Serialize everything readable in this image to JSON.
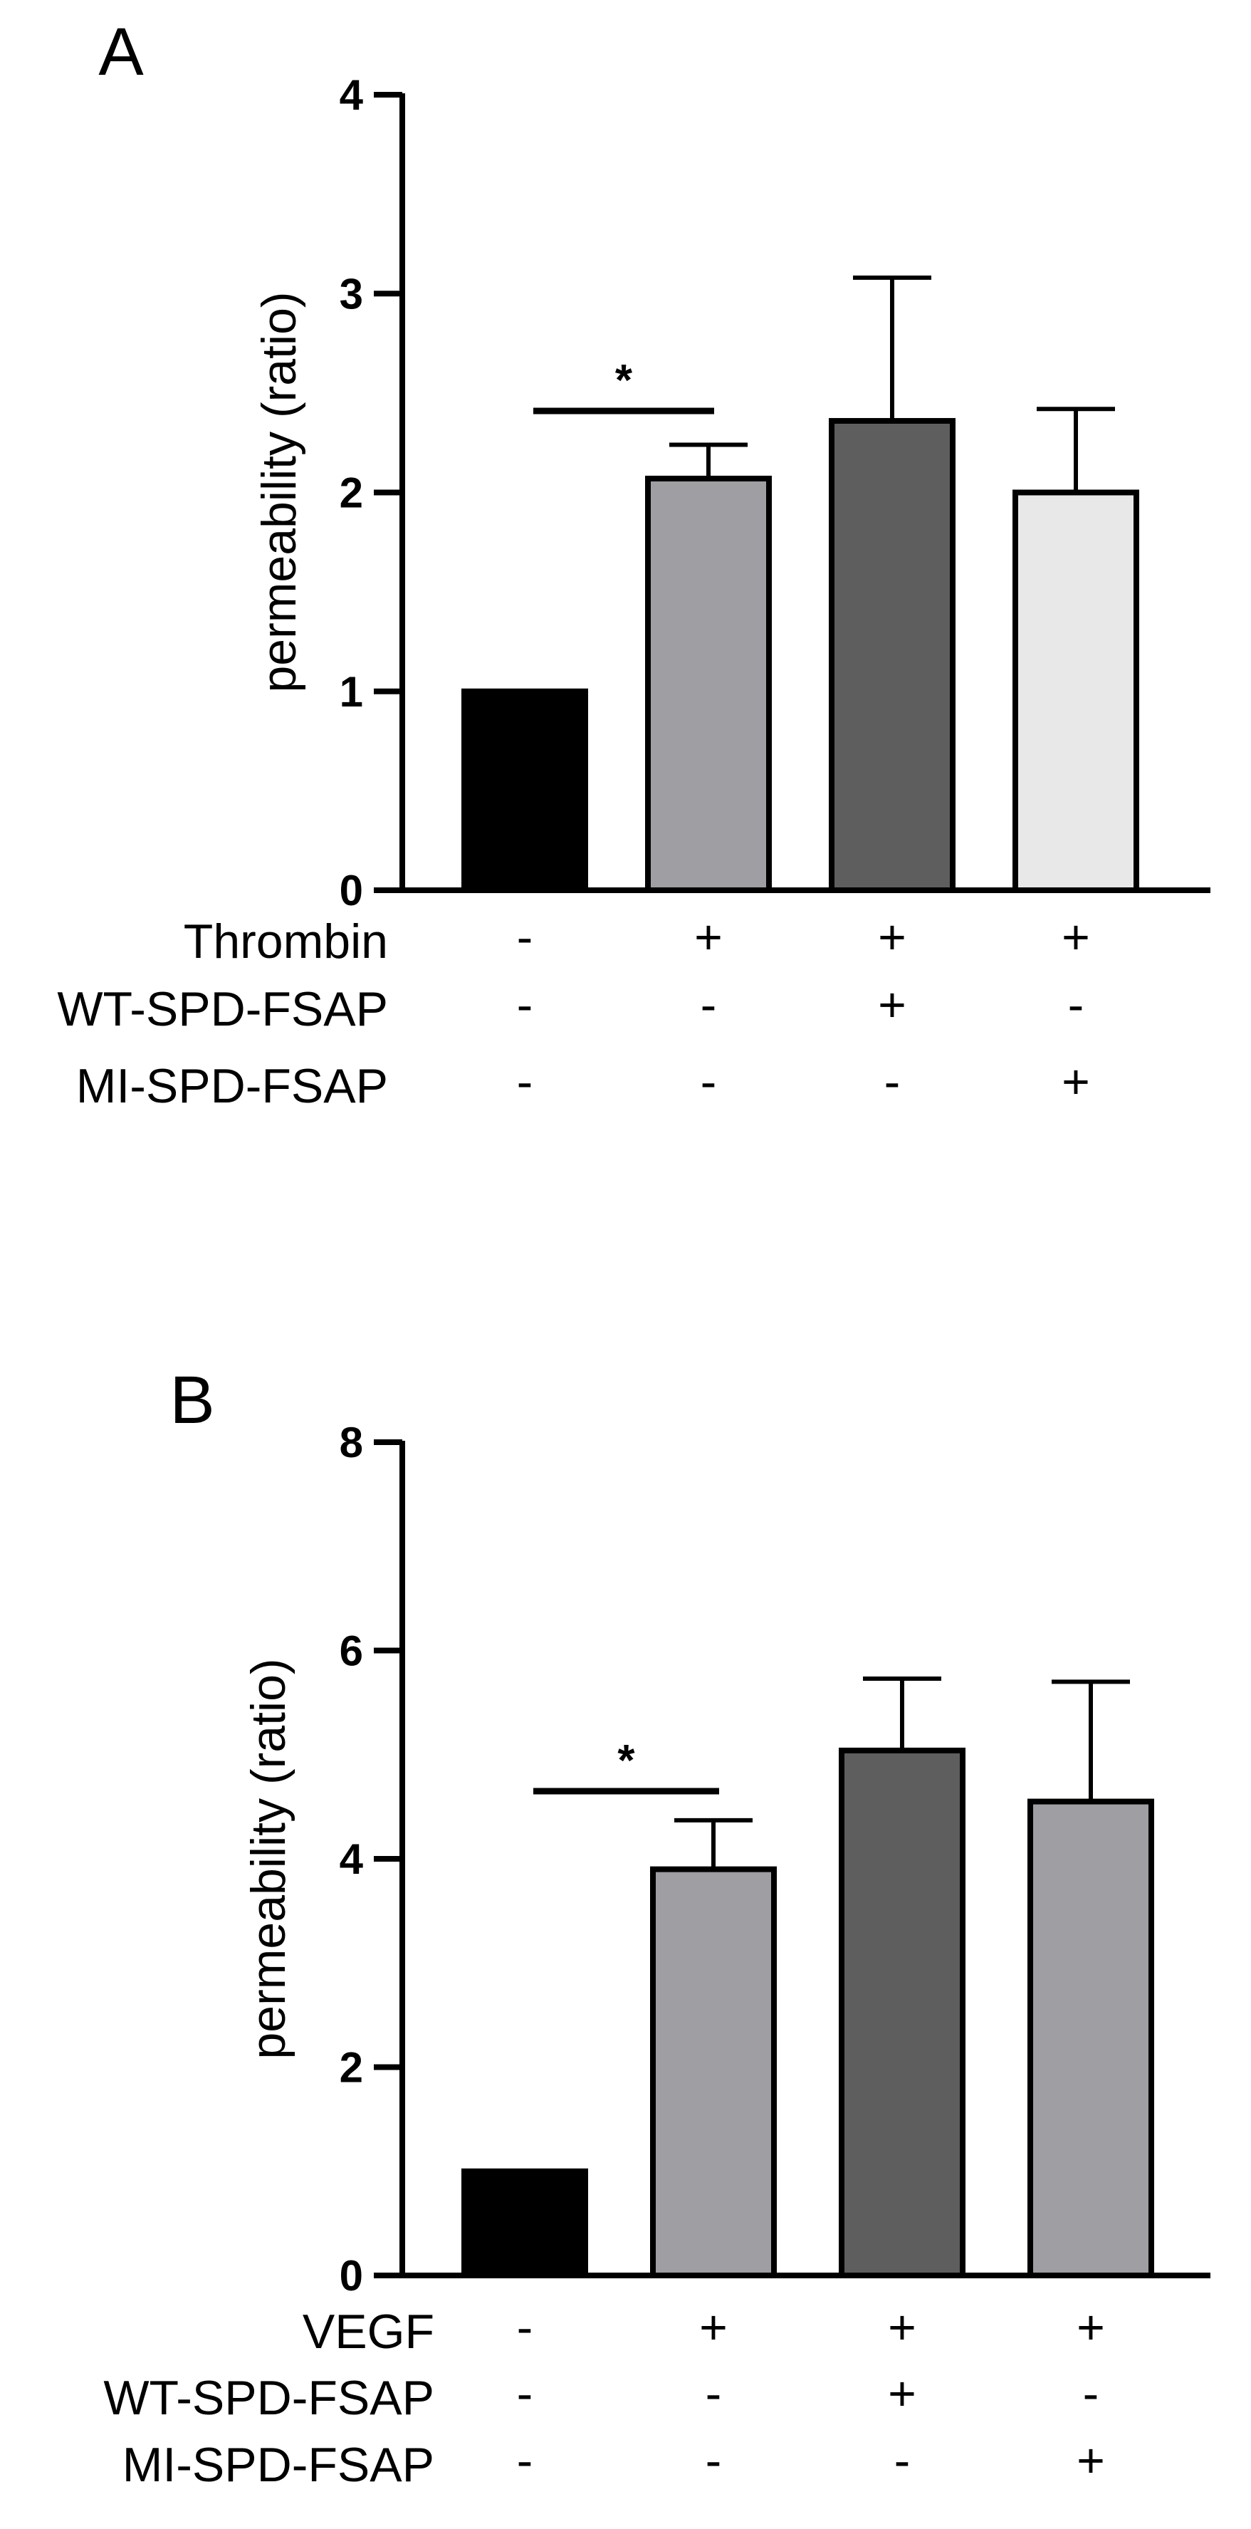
{
  "chart_data": [
    {
      "panel": "A",
      "type": "bar",
      "ylabel": "permeability (ratio)",
      "ylim": [
        0,
        4
      ],
      "yticks": [
        0,
        1,
        2,
        3,
        4
      ],
      "bars": [
        {
          "value": 1.0,
          "error": 0.0,
          "color": "#000000"
        },
        {
          "value": 2.07,
          "error": 0.17,
          "color": "#9e9ea3"
        },
        {
          "value": 2.36,
          "error": 0.72,
          "color": "#5e5e5e"
        },
        {
          "value": 2.0,
          "error": 0.42,
          "color": "#e8e8e8"
        }
      ],
      "significance": {
        "from": 0,
        "to": 1,
        "y": 2.41,
        "label": "*"
      },
      "conditions": [
        {
          "label": "Thrombin",
          "signs": [
            "-",
            "+",
            "+",
            "+"
          ]
        },
        {
          "label": "WT-SPD-FSAP",
          "signs": [
            "-",
            "-",
            "+",
            "-"
          ]
        },
        {
          "label": "MI-SPD-FSAP",
          "signs": [
            "-",
            "-",
            "-",
            "+"
          ]
        }
      ]
    },
    {
      "panel": "B",
      "type": "bar",
      "ylabel": "permeability (ratio)",
      "ylim": [
        0,
        8
      ],
      "yticks": [
        0,
        2,
        4,
        6,
        8
      ],
      "bars": [
        {
          "value": 1.0,
          "error": 0.0,
          "color": "#000000"
        },
        {
          "value": 3.9,
          "error": 0.47,
          "color": "#9e9ea3"
        },
        {
          "value": 5.04,
          "error": 0.69,
          "color": "#5e5e5e"
        },
        {
          "value": 4.55,
          "error": 1.15,
          "color": "#9e9ea3"
        }
      ],
      "significance": {
        "from": 0,
        "to": 1,
        "y": 4.65,
        "label": "*"
      },
      "conditions": [
        {
          "label": "VEGF",
          "signs": [
            "-",
            "+",
            "+",
            "+"
          ]
        },
        {
          "label": "WT-SPD-FSAP",
          "signs": [
            "-",
            "-",
            "+",
            "-"
          ]
        },
        {
          "label": "MI-SPD-FSAP",
          "signs": [
            "-",
            "-",
            "-",
            "+"
          ]
        }
      ]
    }
  ]
}
